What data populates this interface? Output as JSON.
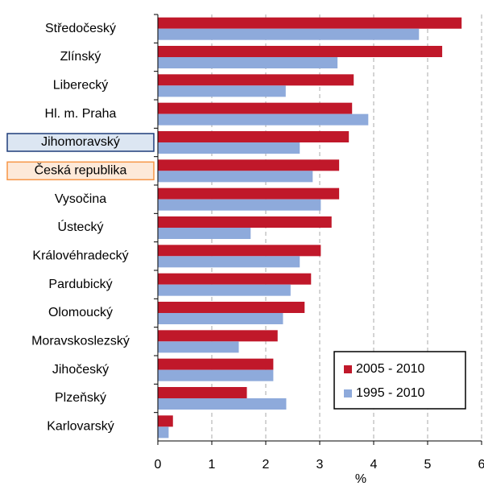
{
  "chart_data": {
    "type": "hbar",
    "categories": [
      "Středočeský",
      "Zlínský",
      "Liberecký",
      "Hl. m. Praha",
      "Jihomoravský",
      "Česká republika",
      "Vysočina",
      "Ústecký",
      "Královéhradecký",
      "Pardubický",
      "Olomoucký",
      "Moravskoslezský",
      "Jihočeský",
      "Plzeňský",
      "Karlovarský"
    ],
    "series": [
      {
        "name": "2005 - 2010",
        "color": "#c0182a",
        "values": [
          5.63,
          5.27,
          3.63,
          3.6,
          3.54,
          3.36,
          3.36,
          3.22,
          3.02,
          2.84,
          2.72,
          2.22,
          2.14,
          1.65,
          0.28
        ]
      },
      {
        "name": "1995 - 2010",
        "color": "#8eaadb",
        "values": [
          4.84,
          3.33,
          2.37,
          3.9,
          2.63,
          2.87,
          3.02,
          1.72,
          2.63,
          2.46,
          2.32,
          1.5,
          2.14,
          2.38,
          0.2
        ]
      }
    ],
    "xlabel": "%",
    "xlim": [
      0,
      6
    ],
    "xticks": [
      0,
      1,
      2,
      3,
      4,
      5,
      6
    ],
    "grid": true,
    "legend": "lower right",
    "label_highlights": [
      {
        "index": 4,
        "fill": "#dce6f2",
        "stroke": "#1f3d7a"
      },
      {
        "index": 5,
        "fill": "#fde9d9",
        "stroke": "#f79646"
      }
    ]
  }
}
